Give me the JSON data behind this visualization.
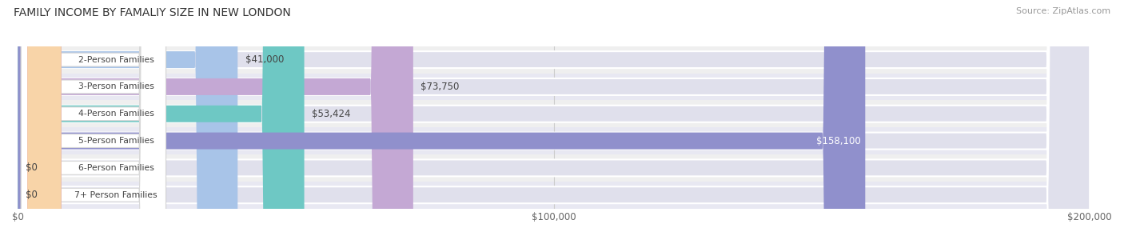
{
  "title": "FAMILY INCOME BY FAMALIY SIZE IN NEW LONDON",
  "source": "Source: ZipAtlas.com",
  "categories": [
    "2-Person Families",
    "3-Person Families",
    "4-Person Families",
    "5-Person Families",
    "6-Person Families",
    "7+ Person Families"
  ],
  "values": [
    41000,
    73750,
    53424,
    158100,
    0,
    0
  ],
  "bar_colors": [
    "#a8c4e8",
    "#c4a8d4",
    "#6ec8c4",
    "#9090cc",
    "#f4a0b8",
    "#f8d4a8"
  ],
  "label_colors": [
    "#333333",
    "#333333",
    "#333333",
    "#ffffff",
    "#333333",
    "#333333"
  ],
  "bar_bg_color": "#e0e0ec",
  "row_bg_colors": [
    "#efefef",
    "#e8e8f2"
  ],
  "xlim": [
    0,
    200000
  ],
  "xticks": [
    0,
    100000,
    200000
  ],
  "xticklabels": [
    "$0",
    "$100,000",
    "$200,000"
  ],
  "value_labels": [
    "$41,000",
    "$73,750",
    "$53,424",
    "$158,100",
    "$0",
    "$0"
  ],
  "title_fontsize": 11,
  "source_fontsize": 8,
  "bar_height": 0.62
}
